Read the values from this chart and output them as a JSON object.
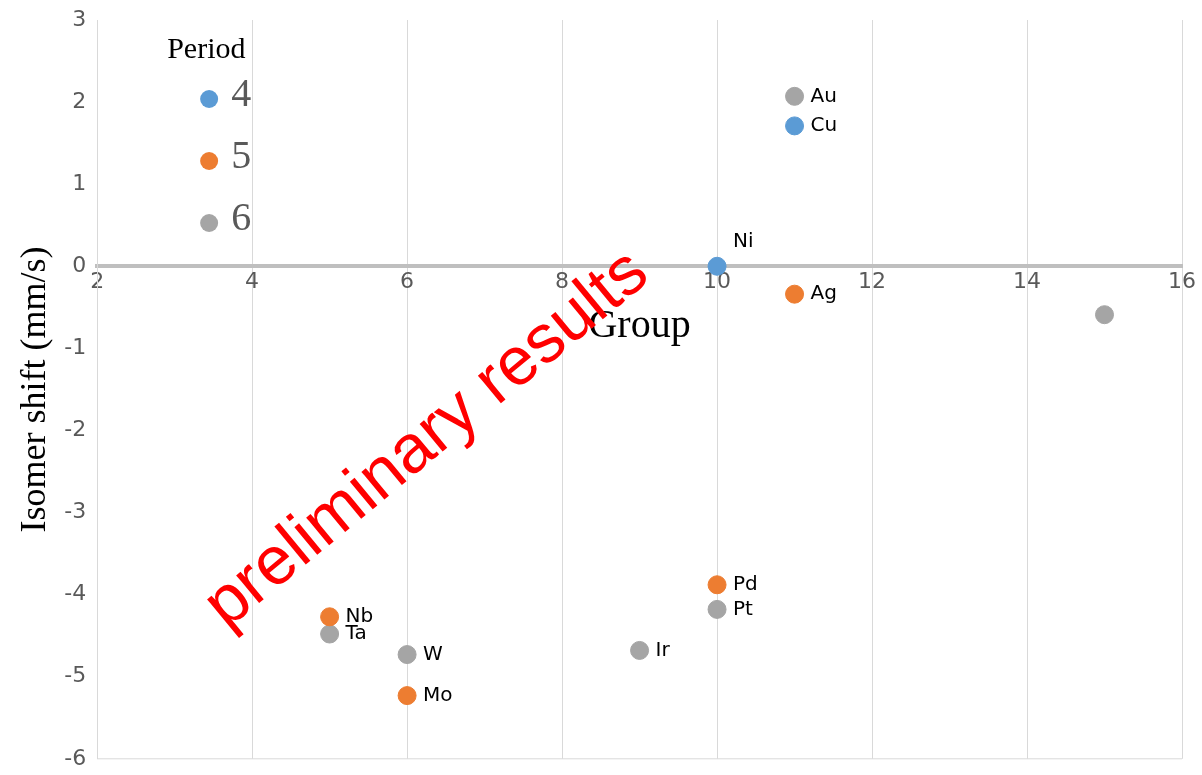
{
  "chart_data": {
    "type": "scatter",
    "xlabel": "Group",
    "ylabel": "Isomer shift (mm/s)",
    "legend_title": "Period",
    "legend": "top left",
    "grid": "x",
    "marker": "circle",
    "xlim": [
      2,
      16
    ],
    "xticks": [
      2,
      4,
      6,
      8,
      10,
      12,
      14,
      16
    ],
    "ylim": [
      -6,
      3
    ],
    "yticks": [
      -6,
      -5,
      -4,
      -3,
      -2,
      -1,
      0,
      1,
      2,
      3
    ],
    "series": [
      {
        "name": "4",
        "color": "#5b9bd5",
        "x": [
          10,
          11
        ],
        "values": [
          0,
          1.71
        ]
      },
      {
        "name": "5",
        "color": "#ed7d31",
        "x": [
          5,
          6,
          10,
          11
        ],
        "values": [
          -4.27,
          -5.23,
          -3.88,
          -0.34
        ]
      },
      {
        "name": "6",
        "color": "#a5a5a5",
        "x": [
          5,
          6,
          9,
          10,
          11,
          15
        ],
        "values": [
          -4.48,
          -4.73,
          -4.68,
          -4.18,
          2.07,
          -0.59
        ]
      }
    ],
    "annotations": [
      {
        "text": "Ni",
        "x": 10,
        "y": 0
      },
      {
        "text": "Cu",
        "x": 11,
        "y": 1.71
      },
      {
        "text": "Nb",
        "x": 5,
        "y": -4.27
      },
      {
        "text": "Mo",
        "x": 6,
        "y": -5.23
      },
      {
        "text": "Pd",
        "x": 10,
        "y": -3.88
      },
      {
        "text": "Ag",
        "x": 11,
        "y": -0.34
      },
      {
        "text": "Ta",
        "x": 5,
        "y": -4.48
      },
      {
        "text": "W",
        "x": 6,
        "y": -4.73
      },
      {
        "text": "Ir",
        "x": 9,
        "y": -4.68
      },
      {
        "text": "Pt",
        "x": 10,
        "y": -4.18
      },
      {
        "text": "Au",
        "x": 11,
        "y": 2.07
      },
      "preliminary results"
    ]
  }
}
